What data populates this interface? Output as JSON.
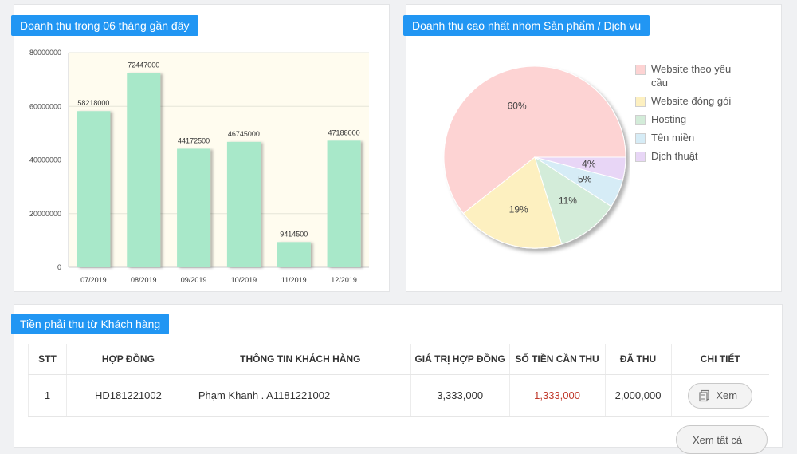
{
  "bar_panel": {
    "title": "Doanh thu trong 06 tháng gần đây"
  },
  "pie_panel": {
    "title": "Doanh thu cao nhất nhóm Sản phẩm / Dịch vu"
  },
  "table_panel": {
    "title": "Tiền phải thu từ Khách hàng",
    "columns": [
      "STT",
      "HỢP ĐỒNG",
      "THÔNG TIN KHÁCH HÀNG",
      "GIÁ TRỊ HỢP ĐỒNG",
      "SỐ TIỀN CẦN THU",
      "ĐÃ THU",
      "CHI TIẾT"
    ],
    "rows": [
      {
        "stt": "1",
        "contract": "HD181221002",
        "customer": "Phạm Khanh . A1181221002",
        "value": "3,333,000",
        "due": "1,333,000",
        "paid": "2,000,000",
        "detail_label": "Xem"
      }
    ],
    "more_label": "Xem tất cả"
  },
  "colors": {
    "accent": "#2196f3",
    "bar": "#a8e8c9",
    "due_text": "#c0392b"
  },
  "icons": {
    "view": "receipt-icon"
  },
  "chart_data": [
    {
      "type": "bar",
      "title": "Doanh thu trong 06 tháng gần đây",
      "categories": [
        "07/2019",
        "08/2019",
        "09/2019",
        "10/2019",
        "11/2019",
        "12/2019"
      ],
      "values": [
        58218000,
        72447000,
        44172500,
        46745000,
        9414500,
        47188000
      ],
      "value_labels": [
        "58218000",
        "72447000",
        "44172500",
        "46745000",
        "9414500",
        "47188000"
      ],
      "y_ticks": [
        "0",
        "20000000",
        "40000000",
        "60000000",
        "80000000"
      ],
      "ylim": [
        0,
        80000000
      ],
      "grid": true
    },
    {
      "type": "pie",
      "title": "Doanh thu cao nhất nhóm Sản phẩm / Dịch vu",
      "slices": [
        {
          "label": "Website theo yêu cầu",
          "value": 60,
          "text": "60%",
          "color": "#fdd3d3"
        },
        {
          "label": "Website đóng gói",
          "value": 19,
          "text": "19%",
          "color": "#fdf0c0"
        },
        {
          "label": "Hosting",
          "value": 11,
          "text": "11%",
          "color": "#d3ecd9"
        },
        {
          "label": "Tên miền",
          "value": 5,
          "text": "5%",
          "color": "#d6ecf6"
        },
        {
          "label": "Dịch thuật",
          "value": 4,
          "text": "4%",
          "color": "#e8d6f6"
        }
      ],
      "legend": "right"
    }
  ]
}
